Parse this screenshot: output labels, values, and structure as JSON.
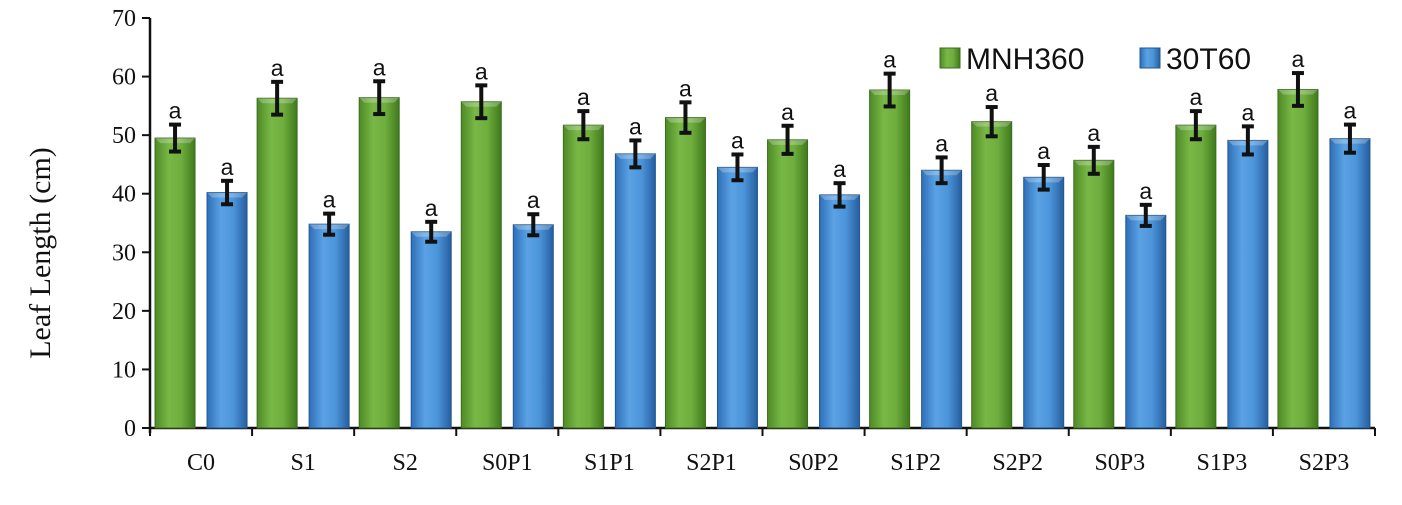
{
  "chart_data": {
    "type": "bar",
    "title": "",
    "xlabel": "",
    "ylabel": "Leaf Length (cm)",
    "ylim": [
      0,
      70
    ],
    "yticks": [
      0,
      10,
      20,
      30,
      40,
      50,
      60,
      70
    ],
    "ytick_labels": [
      "0",
      "10",
      "20",
      "30",
      "40",
      "50",
      "60",
      "70"
    ],
    "grid": false,
    "legend_position": "top-right",
    "categories": [
      "C0",
      "S1",
      "S2",
      "S0P1",
      "S1P1",
      "S2P1",
      "S0P2",
      "S1P2",
      "S2P2",
      "S0P3",
      "S1P3",
      "S2P3"
    ],
    "series": [
      {
        "name": "MNH360",
        "color": "#6aa73a",
        "values": [
          49.5,
          56.3,
          56.4,
          55.7,
          51.7,
          53.0,
          49.2,
          57.7,
          52.3,
          45.7,
          51.7,
          57.8
        ],
        "errors": [
          2.3,
          2.8,
          2.8,
          2.8,
          2.4,
          2.6,
          2.4,
          2.8,
          2.5,
          2.3,
          2.4,
          2.8
        ],
        "labels": [
          "a",
          "a",
          "a",
          "a",
          "a",
          "a",
          "a",
          "a",
          "a",
          "a",
          "a",
          "a"
        ]
      },
      {
        "name": "30T60",
        "color": "#4a8fd6",
        "values": [
          40.2,
          34.8,
          33.5,
          34.7,
          46.8,
          44.5,
          39.8,
          44.0,
          42.8,
          36.3,
          49.1,
          49.4
        ],
        "errors": [
          2.0,
          1.8,
          1.7,
          1.8,
          2.3,
          2.2,
          2.0,
          2.2,
          2.1,
          1.8,
          2.4,
          2.4
        ],
        "labels": [
          "a",
          "a",
          "a",
          "a",
          "a",
          "a",
          "a",
          "a",
          "a",
          "a",
          "a",
          "a"
        ]
      }
    ]
  }
}
